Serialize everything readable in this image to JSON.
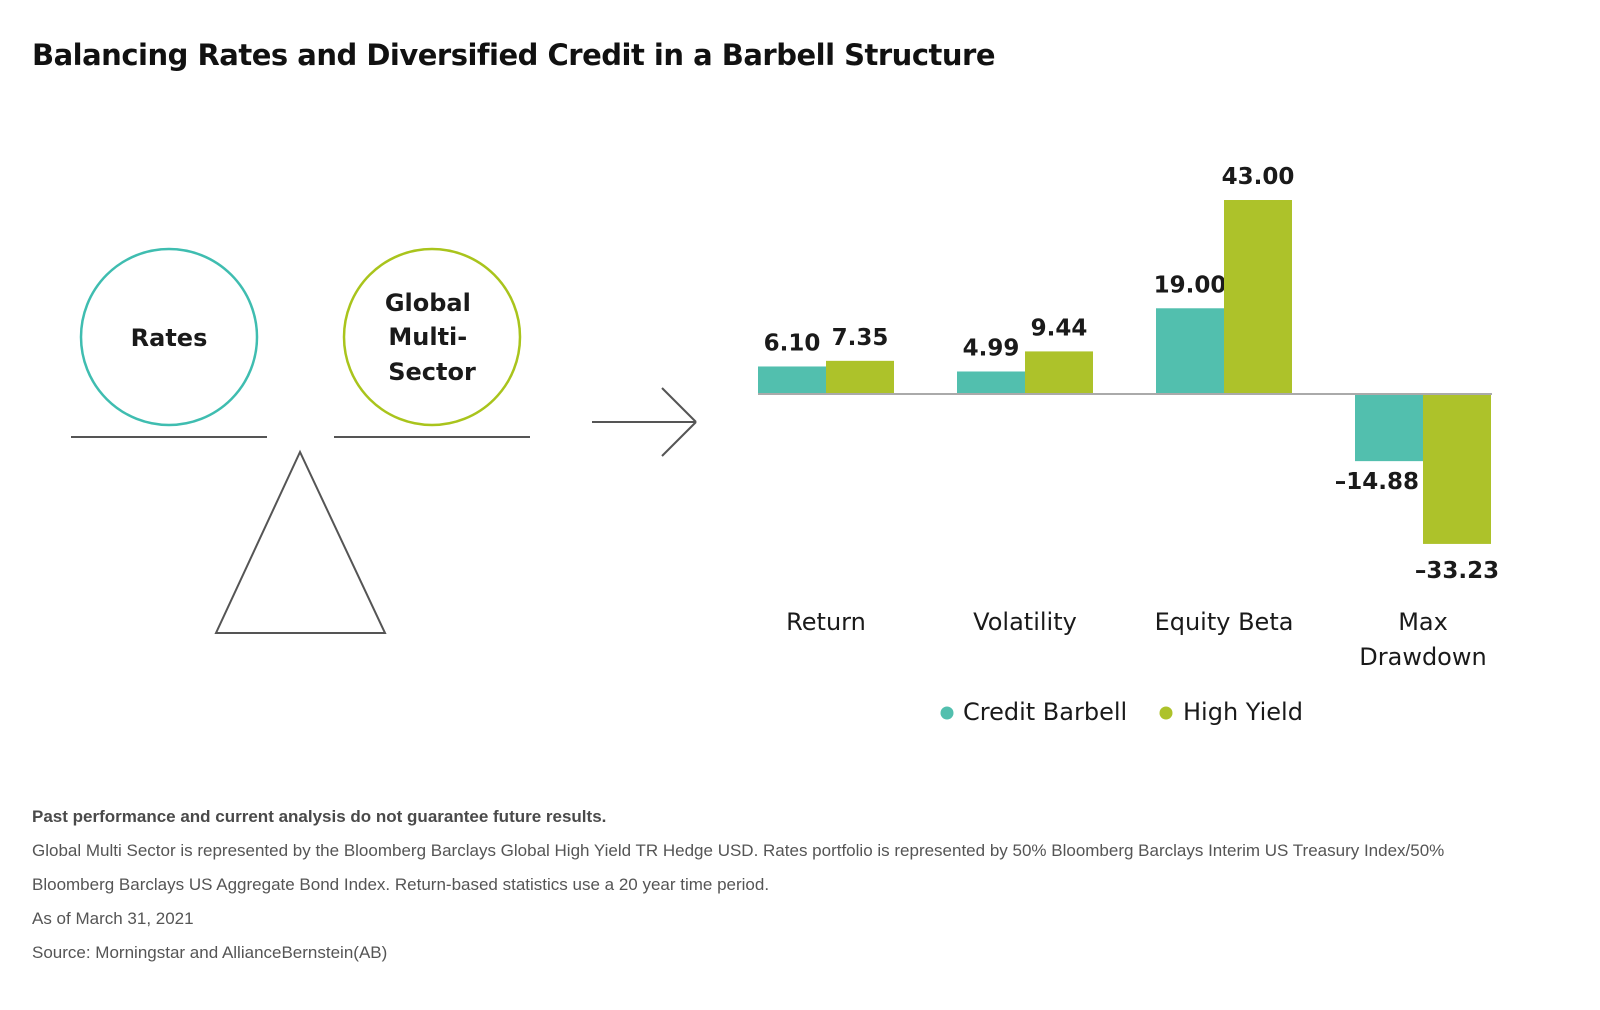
{
  "title": "Balancing Rates and Diversified Credit in a Barbell Structure",
  "diagram": {
    "left_circle_label": "Rates",
    "right_circle_label_lines": [
      "Global",
      "Multi-",
      "Sector"
    ],
    "left_circle_color": "#3fbdb0",
    "right_circle_color": "#a9c41c"
  },
  "chart_data": {
    "type": "bar",
    "categories": [
      "Return",
      "Volatility",
      "Equity Beta",
      "Max Drawdown"
    ],
    "category_label_lines": [
      [
        "Return"
      ],
      [
        "Volatility"
      ],
      [
        "Equity Beta"
      ],
      [
        "Max",
        "Drawdown"
      ]
    ],
    "series": [
      {
        "name": "Credit Barbell",
        "color": "#52bfae",
        "values": [
          6.1,
          4.99,
          19.0,
          -14.88
        ],
        "labels": [
          "6.10",
          "4.99",
          "19.00",
          "–14.88"
        ]
      },
      {
        "name": "High Yield",
        "color": "#adc22a",
        "values": [
          7.35,
          9.44,
          43.0,
          -33.23
        ],
        "labels": [
          "7.35",
          "9.44",
          "43.00",
          "–33.23"
        ]
      }
    ],
    "title": "",
    "xlabel": "",
    "ylabel": "",
    "legend_position": "bottom"
  },
  "footnotes": {
    "disclaimer": "Past performance and current analysis do not guarantee future results.",
    "line1": "Global Multi Sector is represented by the Bloomberg Barclays Global High Yield TR Hedge USD. Rates portfolio is represented by 50% Bloomberg Barclays Interim US Treasury Index/50%",
    "line2": "Bloomberg Barclays US Aggregate Bond Index. Return-based statistics use a 20 year time period.",
    "as_of": "As of March 31, 2021",
    "source": "Source: Morningstar and AllianceBernstein(AB)"
  }
}
